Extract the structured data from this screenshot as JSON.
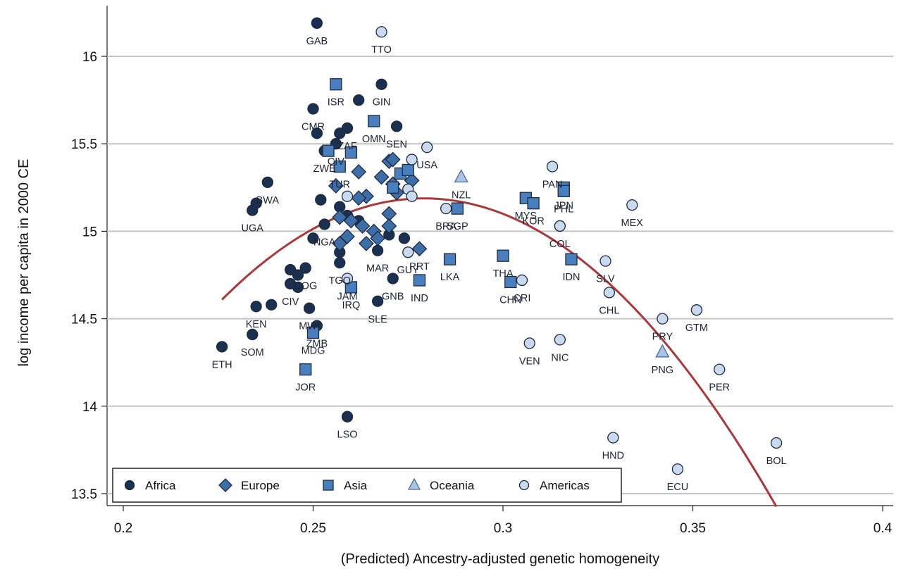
{
  "chart_data": {
    "type": "scatter",
    "title": "",
    "xlabel": "(Predicted) Ancestry-adjusted genetic homogeneity",
    "ylabel": "log income per capita in 2000 CE",
    "xlim": [
      0.2,
      0.4
    ],
    "ylim": [
      13.5,
      16.2
    ],
    "xticks": [
      0.2,
      0.25,
      0.3,
      0.35,
      0.4
    ],
    "xtick_labels": [
      "0.2",
      "0.25",
      "0.3",
      "0.35",
      "0.4"
    ],
    "yticks": [
      13.5,
      14,
      14.5,
      15,
      15.5,
      16
    ],
    "ytick_labels": [
      "13.5",
      "14",
      "14.5",
      "15",
      "15.5",
      "16"
    ],
    "grid": "horizontal",
    "legend_position": "bottom-left",
    "colors": {
      "Africa": "#1b2f4e",
      "Europe": "#3d6ea8",
      "Asia": "#4a7fbf",
      "Oceania": "#a9c4e4",
      "Americas": "#c9d9ee",
      "outline": "#1d2a40",
      "fit": "#a8383a",
      "grid": "#c4c4c4"
    },
    "legend": [
      {
        "name": "Africa",
        "marker": "circle"
      },
      {
        "name": "Europe",
        "marker": "diamond"
      },
      {
        "name": "Asia",
        "marker": "square"
      },
      {
        "name": "Oceania",
        "marker": "triangle"
      },
      {
        "name": "Americas",
        "marker": "circle"
      }
    ],
    "fit_curve": {
      "type": "quadratic",
      "points": [
        [
          0.226,
          14.63
        ],
        [
          0.235,
          14.78
        ],
        [
          0.245,
          14.93
        ],
        [
          0.255,
          15.05
        ],
        [
          0.265,
          15.14
        ],
        [
          0.275,
          15.19
        ],
        [
          0.28,
          15.19
        ],
        [
          0.29,
          15.17
        ],
        [
          0.3,
          15.12
        ],
        [
          0.31,
          15.02
        ],
        [
          0.32,
          14.87
        ],
        [
          0.33,
          14.67
        ],
        [
          0.34,
          14.41
        ],
        [
          0.35,
          14.11
        ],
        [
          0.36,
          13.79
        ],
        [
          0.372,
          13.5
        ]
      ]
    },
    "series": [
      {
        "name": "Africa",
        "marker": "circle",
        "points": [
          {
            "label": "GAB",
            "x": 0.251,
            "y": 16.19
          },
          {
            "label": "GIN",
            "x": 0.268,
            "y": 15.84
          },
          {
            "label": "",
            "x": 0.262,
            "y": 15.75
          },
          {
            "label": "CMR",
            "x": 0.25,
            "y": 15.7
          },
          {
            "label": "ZAF",
            "x": 0.259,
            "y": 15.59
          },
          {
            "label": "",
            "x": 0.251,
            "y": 15.56
          },
          {
            "label": "",
            "x": 0.257,
            "y": 15.56
          },
          {
            "label": "SEN",
            "x": 0.272,
            "y": 15.6
          },
          {
            "label": "CIV",
            "x": 0.256,
            "y": 15.5
          },
          {
            "label": "ZWE",
            "x": 0.253,
            "y": 15.46
          },
          {
            "label": "BWA",
            "x": 0.238,
            "y": 15.28
          },
          {
            "label": "",
            "x": 0.235,
            "y": 15.16
          },
          {
            "label": "UGA",
            "x": 0.234,
            "y": 15.12
          },
          {
            "label": "",
            "x": 0.252,
            "y": 15.18
          },
          {
            "label": "",
            "x": 0.257,
            "y": 15.14
          },
          {
            "label": "NGA",
            "x": 0.253,
            "y": 15.04
          },
          {
            "label": "",
            "x": 0.259,
            "y": 15.09
          },
          {
            "label": "",
            "x": 0.262,
            "y": 15.06
          },
          {
            "label": "",
            "x": 0.25,
            "y": 14.96
          },
          {
            "label": "",
            "x": 0.257,
            "y": 14.88
          },
          {
            "label": "TGO",
            "x": 0.257,
            "y": 14.82
          },
          {
            "label": "MAR",
            "x": 0.267,
            "y": 14.89
          },
          {
            "label": "",
            "x": 0.27,
            "y": 14.98
          },
          {
            "label": "",
            "x": 0.274,
            "y": 14.96
          },
          {
            "label": "",
            "x": 0.244,
            "y": 14.78
          },
          {
            "label": "",
            "x": 0.246,
            "y": 14.75
          },
          {
            "label": "COG",
            "x": 0.248,
            "y": 14.79
          },
          {
            "label": "CIV",
            "x": 0.244,
            "y": 14.7
          },
          {
            "label": "",
            "x": 0.246,
            "y": 14.68
          },
          {
            "label": "GNB",
            "x": 0.271,
            "y": 14.73
          },
          {
            "label": "KEN",
            "x": 0.235,
            "y": 14.57
          },
          {
            "label": "",
            "x": 0.239,
            "y": 14.58
          },
          {
            "label": "MWI",
            "x": 0.249,
            "y": 14.56
          },
          {
            "label": "SLE",
            "x": 0.267,
            "y": 14.6
          },
          {
            "label": "ZMB",
            "x": 0.251,
            "y": 14.46
          },
          {
            "label": "SOM",
            "x": 0.234,
            "y": 14.41
          },
          {
            "label": "ETH",
            "x": 0.226,
            "y": 14.34
          },
          {
            "label": "LSO",
            "x": 0.259,
            "y": 13.94
          }
        ]
      },
      {
        "name": "Europe",
        "marker": "diamond",
        "points": [
          {
            "label": "",
            "x": 0.27,
            "y": 15.4
          },
          {
            "label": "",
            "x": 0.271,
            "y": 15.41
          },
          {
            "label": "",
            "x": 0.262,
            "y": 15.34
          },
          {
            "label": "",
            "x": 0.268,
            "y": 15.31
          },
          {
            "label": "",
            "x": 0.271,
            "y": 15.27
          },
          {
            "label": "",
            "x": 0.276,
            "y": 15.29
          },
          {
            "label": "",
            "x": 0.256,
            "y": 15.26
          },
          {
            "label": "",
            "x": 0.264,
            "y": 15.2
          },
          {
            "label": "",
            "x": 0.262,
            "y": 15.19
          },
          {
            "label": "",
            "x": 0.272,
            "y": 15.22
          },
          {
            "label": "",
            "x": 0.27,
            "y": 15.1
          },
          {
            "label": "",
            "x": 0.257,
            "y": 15.08
          },
          {
            "label": "",
            "x": 0.26,
            "y": 15.06
          },
          {
            "label": "",
            "x": 0.263,
            "y": 15.03
          },
          {
            "label": "",
            "x": 0.27,
            "y": 15.03
          },
          {
            "label": "",
            "x": 0.266,
            "y": 15.0
          },
          {
            "label": "",
            "x": 0.259,
            "y": 14.97
          },
          {
            "label": "",
            "x": 0.257,
            "y": 14.93
          },
          {
            "label": "",
            "x": 0.264,
            "y": 14.93
          },
          {
            "label": "",
            "x": 0.267,
            "y": 14.96
          },
          {
            "label": "PRT",
            "x": 0.278,
            "y": 14.9
          }
        ]
      },
      {
        "name": "Asia",
        "marker": "square",
        "points": [
          {
            "label": "ISR",
            "x": 0.256,
            "y": 15.84
          },
          {
            "label": "OMN",
            "x": 0.266,
            "y": 15.63
          },
          {
            "label": "",
            "x": 0.254,
            "y": 15.46
          },
          {
            "label": "",
            "x": 0.26,
            "y": 15.45
          },
          {
            "label": "TUR",
            "x": 0.257,
            "y": 15.37
          },
          {
            "label": "",
            "x": 0.273,
            "y": 15.33
          },
          {
            "label": "",
            "x": 0.275,
            "y": 15.35
          },
          {
            "label": "",
            "x": 0.271,
            "y": 15.25
          },
          {
            "label": "SGP",
            "x": 0.288,
            "y": 15.13
          },
          {
            "label": "MYS",
            "x": 0.306,
            "y": 15.19
          },
          {
            "label": "KOR",
            "x": 0.308,
            "y": 15.16
          },
          {
            "label": "JPN",
            "x": 0.316,
            "y": 15.25
          },
          {
            "label": "PHL",
            "x": 0.316,
            "y": 15.23
          },
          {
            "label": "LKA",
            "x": 0.286,
            "y": 14.84
          },
          {
            "label": "THA",
            "x": 0.3,
            "y": 14.86
          },
          {
            "label": "IDN",
            "x": 0.318,
            "y": 14.84
          },
          {
            "label": "IND",
            "x": 0.278,
            "y": 14.72
          },
          {
            "label": "CHN",
            "x": 0.302,
            "y": 14.71
          },
          {
            "label": "IRQ",
            "x": 0.26,
            "y": 14.68
          },
          {
            "label": "MDG",
            "x": 0.25,
            "y": 14.42
          },
          {
            "label": "JOR",
            "x": 0.248,
            "y": 14.21
          }
        ]
      },
      {
        "name": "Oceania",
        "marker": "triangle",
        "points": [
          {
            "label": "NZL",
            "x": 0.289,
            "y": 15.31
          },
          {
            "label": "PNG",
            "x": 0.342,
            "y": 14.31
          }
        ]
      },
      {
        "name": "Americas",
        "marker": "circle",
        "points": [
          {
            "label": "TTO",
            "x": 0.268,
            "y": 16.14
          },
          {
            "label": "USA",
            "x": 0.28,
            "y": 15.48
          },
          {
            "label": "",
            "x": 0.276,
            "y": 15.41
          },
          {
            "label": "",
            "x": 0.259,
            "y": 15.2
          },
          {
            "label": "",
            "x": 0.275,
            "y": 15.24
          },
          {
            "label": "",
            "x": 0.276,
            "y": 15.2
          },
          {
            "label": "BRA",
            "x": 0.285,
            "y": 15.13
          },
          {
            "label": "PAN",
            "x": 0.313,
            "y": 15.37
          },
          {
            "label": "MEX",
            "x": 0.334,
            "y": 15.15
          },
          {
            "label": "COL",
            "x": 0.315,
            "y": 15.03
          },
          {
            "label": "GUY",
            "x": 0.275,
            "y": 14.88
          },
          {
            "label": "CRI",
            "x": 0.305,
            "y": 14.72
          },
          {
            "label": "SLV",
            "x": 0.327,
            "y": 14.83
          },
          {
            "label": "CHL",
            "x": 0.328,
            "y": 14.65
          },
          {
            "label": "JAM",
            "x": 0.259,
            "y": 14.73
          },
          {
            "label": "PRY",
            "x": 0.342,
            "y": 14.5
          },
          {
            "label": "GTM",
            "x": 0.351,
            "y": 14.55
          },
          {
            "label": "VEN",
            "x": 0.307,
            "y": 14.36
          },
          {
            "label": "NIC",
            "x": 0.315,
            "y": 14.38
          },
          {
            "label": "PER",
            "x": 0.357,
            "y": 14.21
          },
          {
            "label": "HND",
            "x": 0.329,
            "y": 13.82
          },
          {
            "label": "ECU",
            "x": 0.346,
            "y": 13.64
          },
          {
            "label": "BOL",
            "x": 0.372,
            "y": 13.79
          }
        ]
      }
    ]
  }
}
